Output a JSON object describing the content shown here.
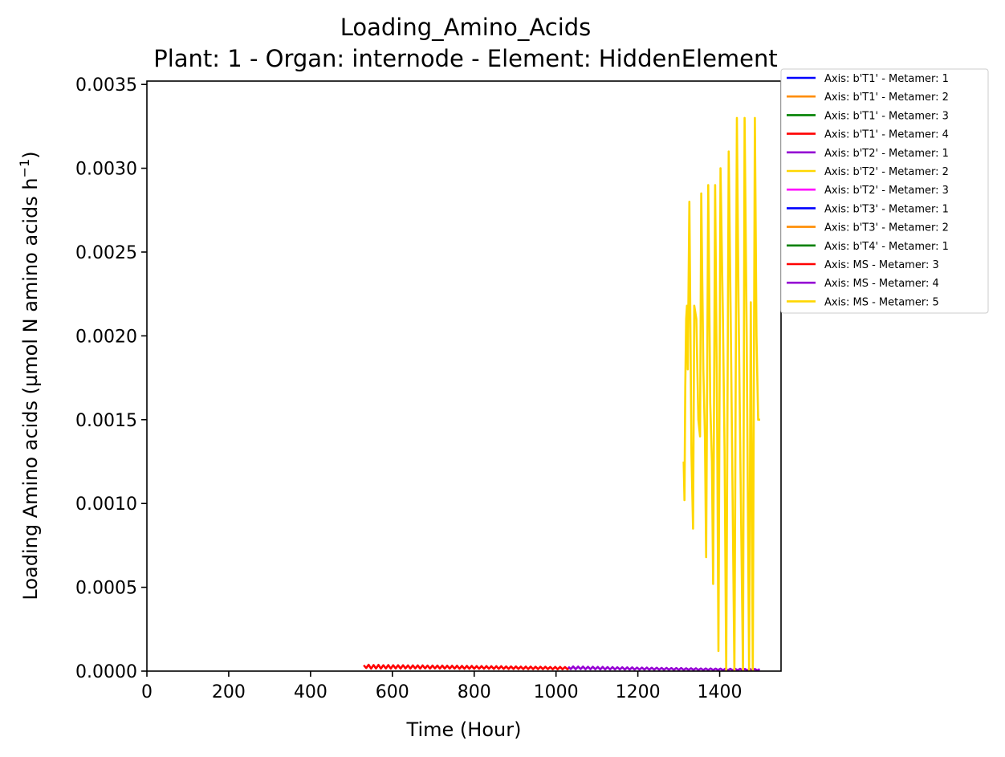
{
  "chart_data": {
    "type": "line",
    "title": "Loading_Amino_Acids",
    "subtitle": "Plant: 1 - Organ: internode - Element: HiddenElement",
    "xlabel": "Time (Hour)",
    "ylabel_main": "Loading Amino acids (µmol N amino acids h",
    "ylabel_sup": "−1",
    "ylabel_close": ")",
    "xlim": [
      0,
      1550
    ],
    "ylim": [
      0,
      0.00352
    ],
    "x_ticks": [
      {
        "value": 0,
        "label": "0"
      },
      {
        "value": 200,
        "label": "200"
      },
      {
        "value": 400,
        "label": "400"
      },
      {
        "value": 600,
        "label": "600"
      },
      {
        "value": 800,
        "label": "800"
      },
      {
        "value": 1000,
        "label": "1000"
      },
      {
        "value": 1200,
        "label": "1200"
      },
      {
        "value": 1400,
        "label": "1400"
      }
    ],
    "y_ticks": [
      {
        "value": 0,
        "label": "0.0000"
      },
      {
        "value": 0.0005,
        "label": "0.0005"
      },
      {
        "value": 0.001,
        "label": "0.0010"
      },
      {
        "value": 0.0015,
        "label": "0.0015"
      },
      {
        "value": 0.002,
        "label": "0.0020"
      },
      {
        "value": 0.0025,
        "label": "0.0025"
      },
      {
        "value": 0.003,
        "label": "0.0030"
      },
      {
        "value": 0.0035,
        "label": "0.0035"
      }
    ],
    "grid": false,
    "legend_position": "outside-right-top",
    "series": [
      {
        "name": "Axis: b'T1' - Metamer: 1",
        "color": "#0000ff",
        "x": [],
        "y": []
      },
      {
        "name": "Axis: b'T1' - Metamer: 2",
        "color": "#ff8c00",
        "x": [],
        "y": []
      },
      {
        "name": "Axis: b'T1' - Metamer: 3",
        "color": "#008000",
        "x": [],
        "y": []
      },
      {
        "name": "Axis: b'T1' - Metamer: 4",
        "color": "#ff0000",
        "x": [],
        "y": []
      },
      {
        "name": "Axis: b'T2' - Metamer: 1",
        "color": "#9400d3",
        "x": [],
        "y": []
      },
      {
        "name": "Axis: b'T2' - Metamer: 2",
        "color": "#ffd700",
        "x": [],
        "y": []
      },
      {
        "name": "Axis: b'T2' - Metamer: 3",
        "color": "#ff00ff",
        "x": [],
        "y": []
      },
      {
        "name": "Axis: b'T3' - Metamer: 1",
        "color": "#0000ff",
        "x": [],
        "y": []
      },
      {
        "name": "Axis: b'T3' - Metamer: 2",
        "color": "#ff8c00",
        "x": [],
        "y": []
      },
      {
        "name": "Axis: b'T4' - Metamer: 1",
        "color": "#008000",
        "x": [],
        "y": []
      },
      {
        "name": "Axis: MS - Metamer: 3",
        "color": "#ff0000",
        "x": [
          530,
          536,
          542,
          548,
          554,
          560,
          566,
          572,
          578,
          584,
          590,
          596,
          602,
          608,
          614,
          620,
          626,
          632,
          638,
          644,
          650,
          656,
          662,
          668,
          674,
          680,
          686,
          692,
          698,
          704,
          710,
          716,
          722,
          728,
          734,
          740,
          746,
          752,
          758,
          764,
          770,
          776,
          782,
          788,
          794,
          800,
          806,
          812,
          818,
          824,
          830,
          836,
          842,
          848,
          854,
          860,
          866,
          872,
          878,
          884,
          890,
          896,
          902,
          908,
          914,
          920,
          926,
          932,
          938,
          944,
          950,
          956,
          962,
          968,
          974,
          980,
          986,
          992,
          998,
          1004,
          1010,
          1016,
          1022,
          1028,
          1034
        ],
        "y": [
          3.5e-05,
          1.8e-05,
          3.8e-05,
          1.5e-05,
          3.6e-05,
          1.6e-05,
          3.7e-05,
          1.5e-05,
          3.5e-05,
          1.6e-05,
          3.6e-05,
          1.5e-05,
          3.5e-05,
          1.6e-05,
          3.5e-05,
          1.5e-05,
          3.5e-05,
          1.6e-05,
          3.4e-05,
          1.5e-05,
          3.4e-05,
          1.6e-05,
          3.4e-05,
          1.5e-05,
          3.4e-05,
          1.6e-05,
          3.3e-05,
          1.5e-05,
          3.3e-05,
          1.6e-05,
          3.3e-05,
          1.5e-05,
          3.3e-05,
          1.5e-05,
          3.2e-05,
          1.5e-05,
          3.2e-05,
          1.5e-05,
          3.2e-05,
          1.4e-05,
          3.1e-05,
          1.4e-05,
          3.1e-05,
          1.4e-05,
          3.1e-05,
          1.4e-05,
          3e-05,
          1.4e-05,
          3e-05,
          1.4e-05,
          3e-05,
          1.4e-05,
          2.9e-05,
          1.3e-05,
          2.9e-05,
          1.3e-05,
          2.9e-05,
          1.3e-05,
          2.8e-05,
          1.3e-05,
          2.8e-05,
          1.3e-05,
          2.8e-05,
          1.3e-05,
          2.7e-05,
          1.2e-05,
          2.7e-05,
          1.2e-05,
          2.7e-05,
          1.2e-05,
          2.6e-05,
          1.2e-05,
          2.6e-05,
          1.2e-05,
          2.6e-05,
          1.2e-05,
          2.5e-05,
          1.1e-05,
          2.5e-05,
          1.1e-05,
          2.5e-05,
          1.1e-05,
          2.4e-05,
          1.1e-05,
          2.4e-05
        ]
      },
      {
        "name": "Axis: MS - Metamer: 4",
        "color": "#9400d3",
        "x": [
          1030,
          1036,
          1042,
          1048,
          1054,
          1060,
          1066,
          1072,
          1078,
          1084,
          1090,
          1096,
          1102,
          1108,
          1114,
          1120,
          1126,
          1132,
          1138,
          1144,
          1150,
          1156,
          1162,
          1168,
          1174,
          1180,
          1186,
          1192,
          1198,
          1204,
          1210,
          1216,
          1222,
          1228,
          1234,
          1240,
          1246,
          1252,
          1258,
          1264,
          1270,
          1276,
          1282,
          1288,
          1294,
          1300,
          1306,
          1312,
          1318,
          1324,
          1330,
          1336,
          1342,
          1348,
          1354,
          1360,
          1366,
          1372,
          1378,
          1384,
          1390,
          1396,
          1402,
          1408,
          1414,
          1420,
          1426,
          1432,
          1438,
          1444,
          1450,
          1456,
          1462,
          1468,
          1474,
          1480,
          1486,
          1492,
          1498
        ],
        "y": [
          2.6e-05,
          1.2e-05,
          2.8e-05,
          1.1e-05,
          2.7e-05,
          1.2e-05,
          2.7e-05,
          1.1e-05,
          2.6e-05,
          1.1e-05,
          2.6e-05,
          1.1e-05,
          2.5e-05,
          1e-05,
          2.5e-05,
          1e-05,
          2.4e-05,
          1e-05,
          2.4e-05,
          1e-05,
          2.3e-05,
          1e-05,
          2.3e-05,
          9e-06,
          2.2e-05,
          9e-06,
          2.2e-05,
          9e-06,
          2.1e-05,
          9e-06,
          2.1e-05,
          9e-06,
          2.1e-05,
          8e-06,
          2e-05,
          8e-06,
          2e-05,
          8e-06,
          1.9e-05,
          8e-06,
          1.9e-05,
          8e-06,
          1.8e-05,
          7e-06,
          1.8e-05,
          7e-06,
          1.8e-05,
          7e-06,
          1.7e-05,
          7e-06,
          1.7e-05,
          7e-06,
          1.7e-05,
          6e-06,
          1.6e-05,
          6e-06,
          1.6e-05,
          6e-06,
          1.6e-05,
          6e-06,
          1.5e-05,
          6e-06,
          1.5e-05,
          5e-06,
          1.5e-05,
          5e-06,
          1.4e-05,
          5e-06,
          1.4e-05,
          5e-06,
          1.4e-05,
          5e-06,
          1.3e-05,
          4e-06,
          1.3e-05,
          4e-06,
          1.3e-05,
          4e-06,
          1.2e-05
        ]
      },
      {
        "name": "Axis: MS - Metamer: 5",
        "color": "#ffd700",
        "x": [
          1312,
          1314,
          1316,
          1318,
          1320,
          1322,
          1326,
          1331,
          1335,
          1338,
          1343,
          1348,
          1352,
          1355,
          1360,
          1364,
          1367,
          1372,
          1377,
          1381,
          1384,
          1389,
          1394,
          1397,
          1402,
          1408,
          1412,
          1416,
          1422,
          1427,
          1431,
          1436,
          1442,
          1446,
          1451,
          1457,
          1461,
          1466,
          1472,
          1476,
          1481,
          1486,
          1490,
          1494,
          1499
        ],
        "y": [
          0.00125,
          0.00102,
          0.0017,
          0.0021,
          0.00218,
          0.0018,
          0.0028,
          0.0013,
          0.00085,
          0.00218,
          0.0021,
          0.0015,
          0.0014,
          0.00285,
          0.0018,
          0.0014,
          0.00068,
          0.0029,
          0.0016,
          0.00125,
          0.00052,
          0.0029,
          0.0014,
          0.00012,
          0.003,
          0.0021,
          0.0013,
          0.0,
          0.0031,
          0.0021,
          0.0012,
          0.0,
          0.0033,
          0.0022,
          0.0012,
          0.0,
          0.0033,
          0.002,
          0.0,
          0.0022,
          0.0,
          0.0033,
          0.002,
          0.0015,
          0.0015
        ]
      }
    ]
  }
}
